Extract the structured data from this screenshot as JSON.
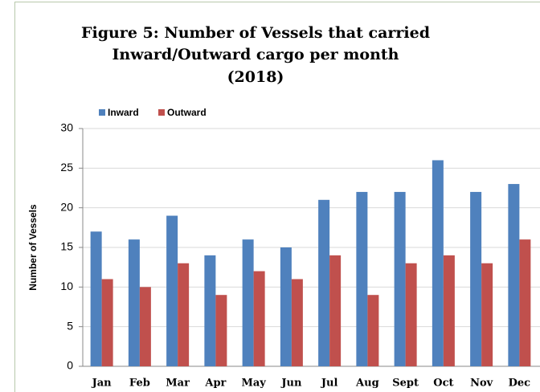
{
  "chart_data": {
    "type": "bar",
    "title": [
      "Figure 5: Number of Vessels that carried",
      "Inward/Outward cargo per month",
      "(2018)"
    ],
    "y_label": "Number of Vessels",
    "categories": [
      "Jan",
      "Feb",
      "Mar",
      "Apr",
      "May",
      "Jun",
      "Jul",
      "Aug",
      "Sept",
      "Oct",
      "Nov",
      "Dec"
    ],
    "series": [
      {
        "name": "Inward",
        "color": "#4f81bd",
        "values": [
          17,
          16,
          19,
          14,
          16,
          15,
          21,
          22,
          22,
          26,
          22,
          23
        ]
      },
      {
        "name": "Outward",
        "color": "#c0504d",
        "values": [
          11,
          10,
          13,
          9,
          12,
          11,
          14,
          9,
          13,
          14,
          13,
          16
        ]
      }
    ],
    "ylim": [
      0,
      30
    ],
    "yticks": [
      0,
      5,
      10,
      15,
      20,
      25,
      30
    ],
    "grid": true,
    "legend": "top-left"
  }
}
